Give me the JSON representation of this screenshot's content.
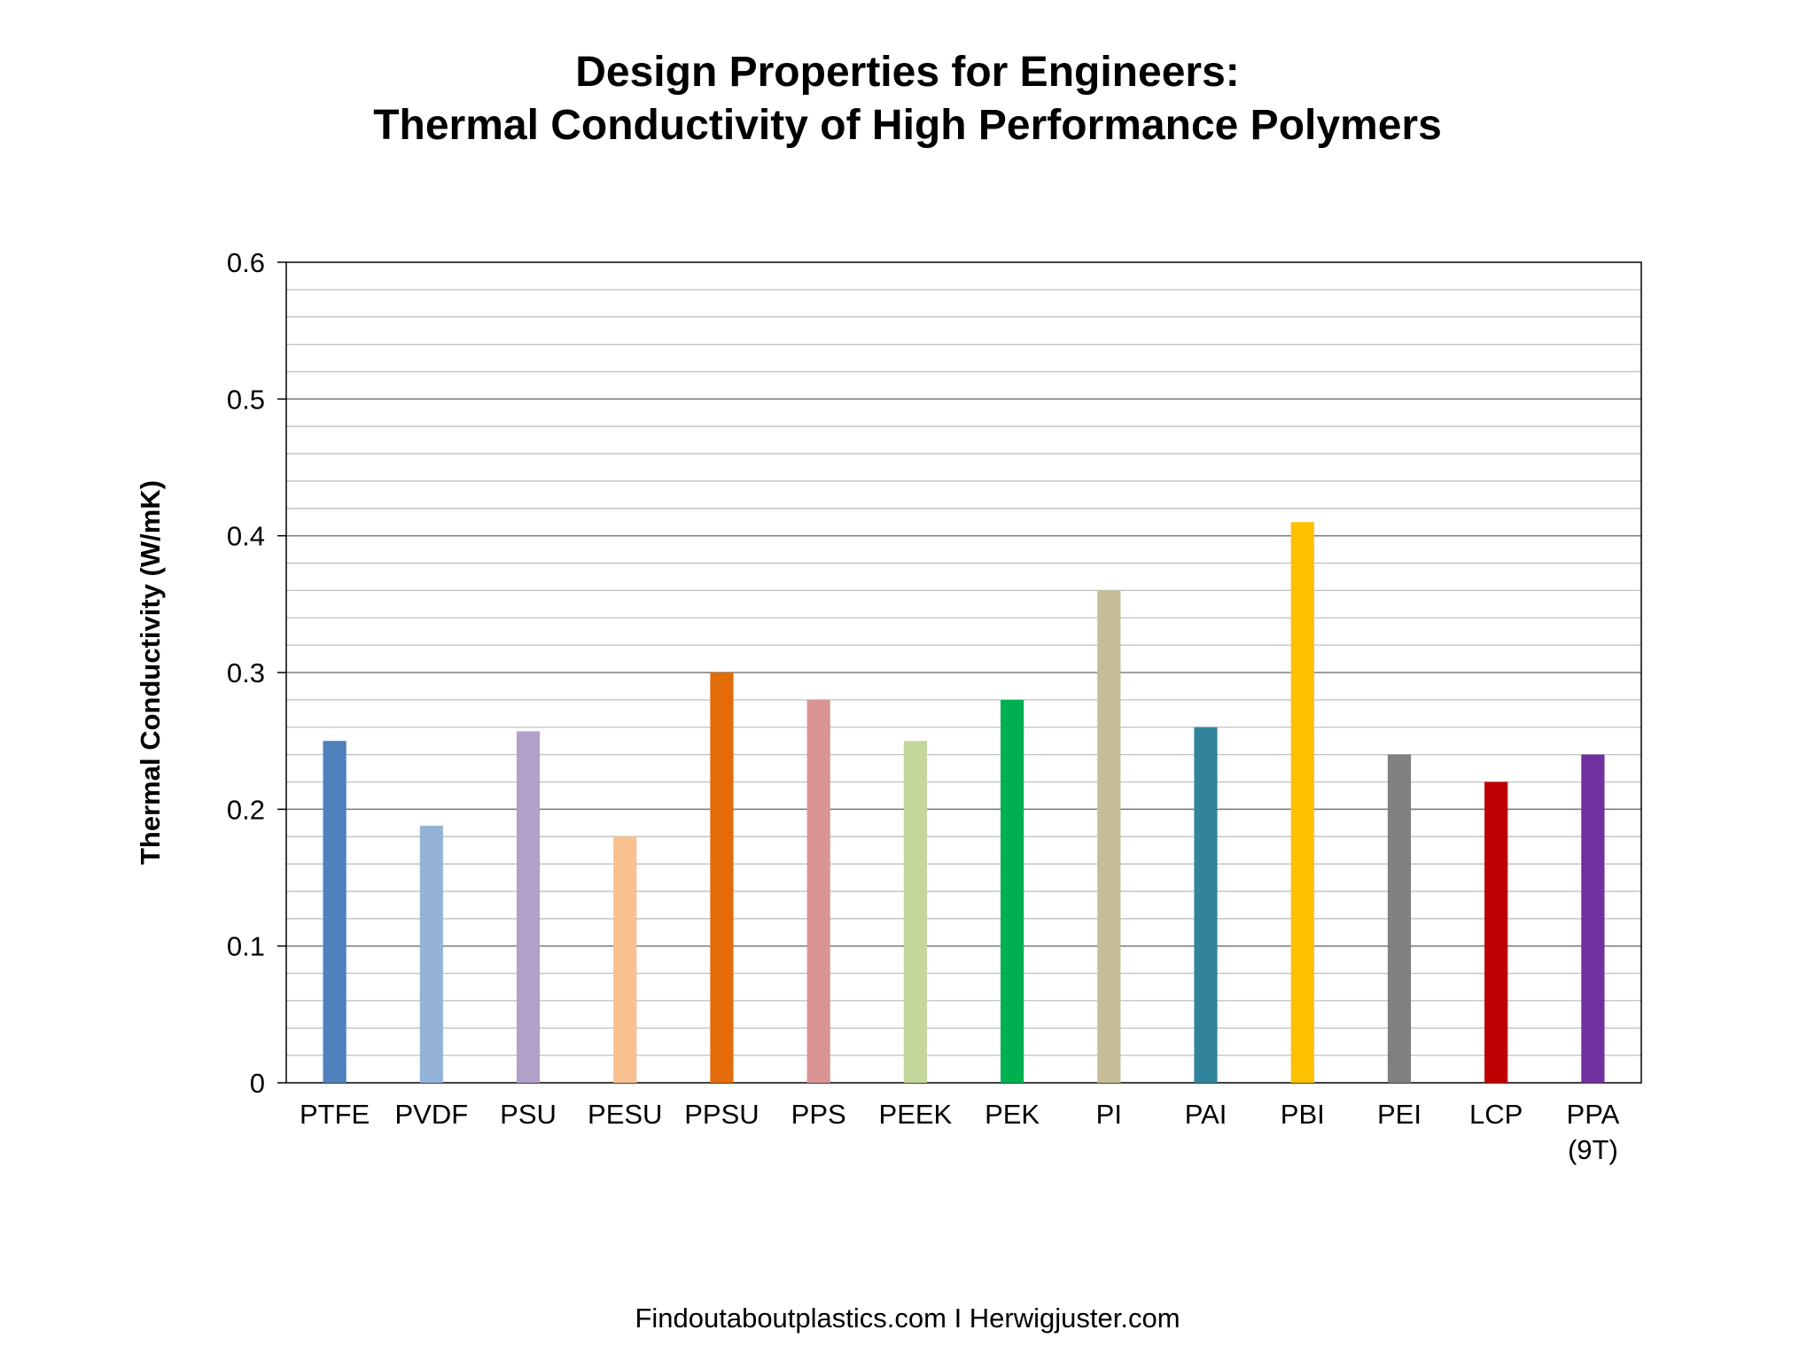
{
  "chart_data": {
    "type": "bar",
    "title": [
      "Design Properties for Engineers:",
      "Thermal Conductivity of High Performance Polymers"
    ],
    "xlabel": "",
    "ylabel": "Thermal Conductivity (W/mK)",
    "ylim": [
      0,
      0.6
    ],
    "y_major_ticks": [
      "0",
      "0.1",
      "0.2",
      "0.3",
      "0.4",
      "0.5",
      "0.6"
    ],
    "y_minor_step": 0.02,
    "grid": true,
    "categories": [
      "PTFE",
      "PVDF",
      "PSU",
      "PESU",
      "PPSU",
      "PPS",
      "PEEK",
      "PEK",
      "PI",
      "PAI",
      "PBI",
      "PEI",
      "LCP",
      "PPA\n(9T)"
    ],
    "values": [
      0.25,
      0.188,
      0.257,
      0.18,
      0.3,
      0.28,
      0.25,
      0.28,
      0.36,
      0.26,
      0.41,
      0.24,
      0.22,
      0.24
    ],
    "colors": [
      "#4F81BD",
      "#95B3D7",
      "#B1A0C7",
      "#FAC090",
      "#E36C09",
      "#D99594",
      "#C4D79B",
      "#00B050",
      "#C4BD97",
      "#31849B",
      "#FFC000",
      "#808080",
      "#C00000",
      "#7030A0"
    ]
  },
  "footer": "Findoutaboutplastics.com I Herwigjuster.com"
}
